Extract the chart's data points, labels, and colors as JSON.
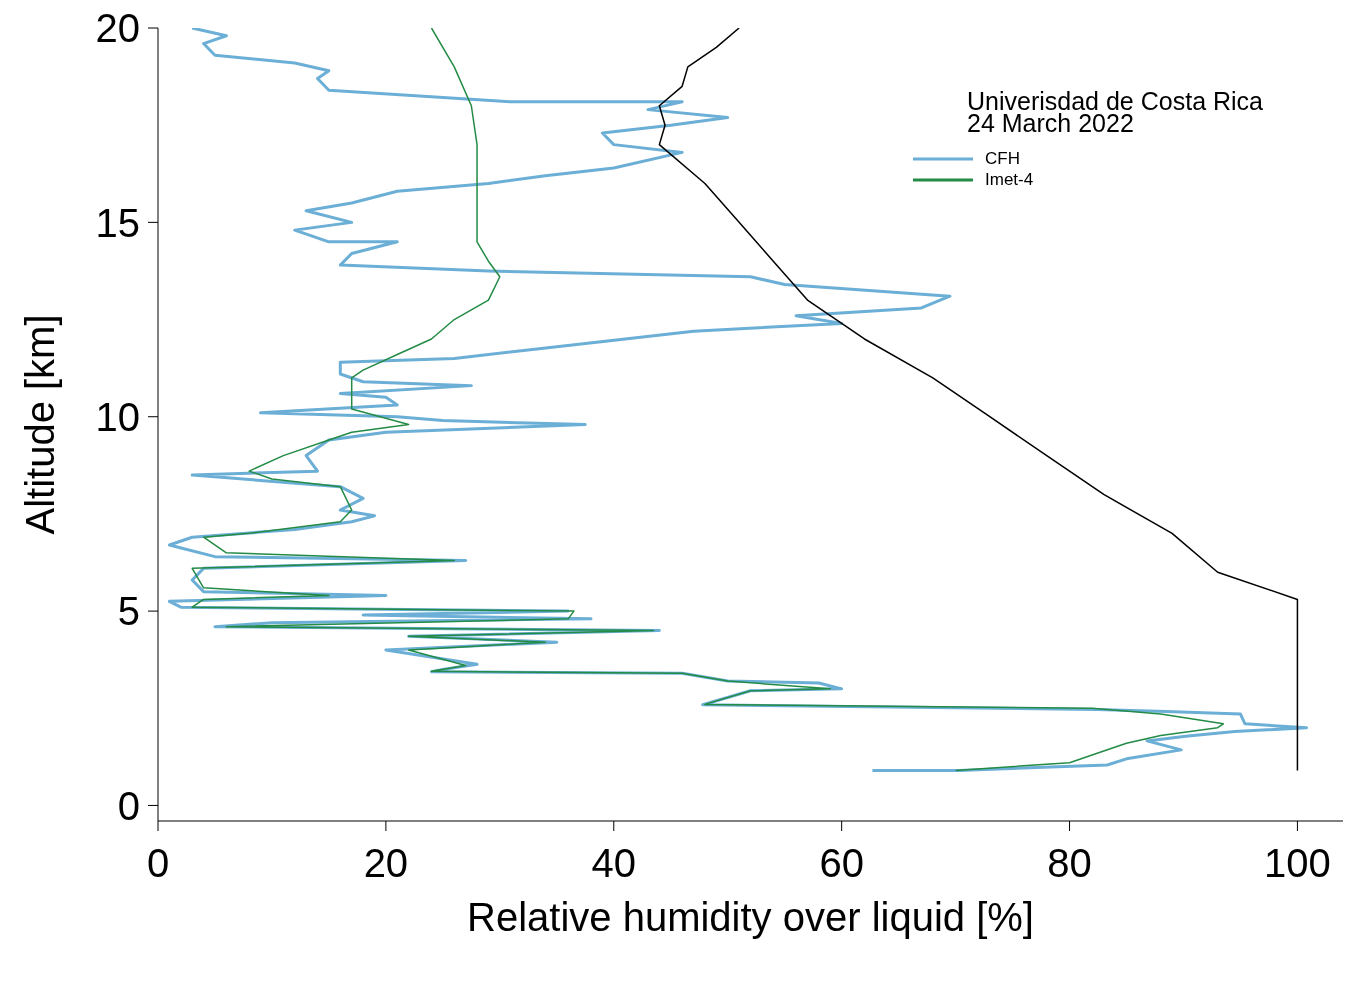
{
  "chart_data": {
    "type": "line",
    "xlabel": "Relative humidity over liquid [%]",
    "ylabel": "Altitude [km]",
    "annotations": [
      "Univerisdad de Costa Rica",
      "24 March 2022"
    ],
    "xlim": [
      0,
      104
    ],
    "xticks": [
      0,
      20,
      40,
      60,
      80,
      100
    ],
    "ylim": [
      -0.4,
      20
    ],
    "yticks": [
      0,
      5,
      10,
      15,
      20
    ],
    "grid": false,
    "legend": "top right",
    "marker": "none",
    "line_style": "solid",
    "series": [
      {
        "name": "CFH",
        "color": "#6baed6",
        "x": [
          62.7,
          70.3,
          83.3,
          85,
          89.8,
          86.8,
          90.2,
          94.5,
          100.8,
          95.4,
          95,
          88.5,
          82.4,
          47.8,
          52,
          60,
          58,
          50,
          46,
          24,
          25,
          28,
          20,
          35,
          22,
          44,
          5,
          10,
          38,
          18,
          36,
          2,
          1,
          20,
          4,
          3,
          4,
          27,
          5,
          1,
          3,
          12,
          17,
          19,
          16,
          18,
          16,
          3,
          14,
          13,
          15,
          20,
          37.5,
          25,
          21,
          9,
          21,
          20,
          16,
          27.5,
          18,
          16,
          16,
          26,
          35,
          47,
          60,
          56,
          67,
          69.5,
          55,
          52,
          29,
          16,
          17,
          21,
          15,
          12,
          17,
          13,
          17,
          21,
          29,
          34,
          40,
          46,
          40,
          39,
          45,
          50,
          43,
          46,
          31,
          15,
          14,
          15,
          12,
          5,
          4,
          6,
          3
        ],
        "values": [
          0.9,
          0.9,
          1.04,
          1.2,
          1.43,
          1.66,
          1.78,
          1.9,
          2.0,
          2.1,
          2.35,
          2.42,
          2.47,
          2.59,
          2.95,
          3.0,
          3.15,
          3.2,
          3.4,
          3.44,
          3.5,
          3.63,
          4.0,
          4.2,
          4.35,
          4.5,
          4.6,
          4.7,
          4.8,
          4.9,
          5.0,
          5.1,
          5.25,
          5.4,
          5.5,
          5.8,
          6.1,
          6.3,
          6.4,
          6.7,
          6.9,
          7.1,
          7.3,
          7.45,
          7.6,
          7.9,
          8.2,
          8.5,
          8.6,
          9.0,
          9.4,
          9.6,
          9.8,
          9.9,
          10.0,
          10.1,
          10.3,
          10.5,
          10.6,
          10.8,
          10.9,
          11.1,
          11.4,
          11.5,
          11.8,
          12.2,
          12.4,
          12.6,
          12.8,
          13.1,
          13.4,
          13.6,
          13.75,
          13.9,
          14.2,
          14.5,
          14.5,
          14.8,
          15.0,
          15.3,
          15.5,
          15.8,
          16.0,
          16.2,
          16.4,
          16.8,
          17.0,
          17.3,
          17.5,
          17.7,
          17.9,
          18.1,
          18.1,
          18.4,
          18.7,
          18.9,
          19.1,
          19.3,
          19.6,
          19.8,
          20.0
        ]
      },
      {
        "name": "Imet-4",
        "color": "#238b45",
        "x": [
          70,
          80,
          83,
          85,
          88,
          93,
          93.5,
          88,
          82,
          48,
          52,
          59,
          50,
          46,
          24,
          27,
          22,
          34,
          22,
          43.5,
          6,
          36,
          36.5,
          3,
          4,
          15,
          4,
          3,
          26,
          6,
          4,
          8,
          16,
          17,
          16,
          10,
          8,
          11,
          15,
          17,
          22,
          17,
          17,
          17,
          18,
          21,
          24,
          26,
          29,
          30,
          29,
          28,
          28,
          28,
          28,
          27.5,
          26,
          24
        ],
        "values": [
          0.9,
          1.1,
          1.4,
          1.6,
          1.8,
          2.0,
          2.1,
          2.35,
          2.5,
          2.6,
          2.95,
          3.0,
          3.2,
          3.4,
          3.45,
          3.6,
          4.0,
          4.2,
          4.35,
          4.5,
          4.6,
          4.8,
          5.0,
          5.1,
          5.3,
          5.4,
          5.6,
          6.1,
          6.3,
          6.5,
          6.9,
          7.0,
          7.3,
          7.6,
          8.2,
          8.4,
          8.6,
          9.0,
          9.4,
          9.6,
          9.8,
          10.2,
          10.6,
          11.0,
          11.2,
          11.6,
          12.0,
          12.5,
          13.0,
          13.6,
          14.0,
          14.5,
          15.0,
          16.0,
          17.0,
          18.0,
          19.0,
          20.0
        ]
      },
      {
        "color": "#000000",
        "x": [
          100,
          100,
          100,
          93,
          89,
          83,
          78,
          73,
          68,
          62,
          57,
          54,
          51,
          48,
          44,
          44.5,
          44,
          46,
          46.5,
          49,
          51
        ],
        "values": [
          0.9,
          4.5,
          5.3,
          6.0,
          7.0,
          8.0,
          9.0,
          10.0,
          11.0,
          12.0,
          13.0,
          14.0,
          15.0,
          16.0,
          17.0,
          17.5,
          18.0,
          18.5,
          19.0,
          19.5,
          20.0
        ]
      }
    ]
  }
}
